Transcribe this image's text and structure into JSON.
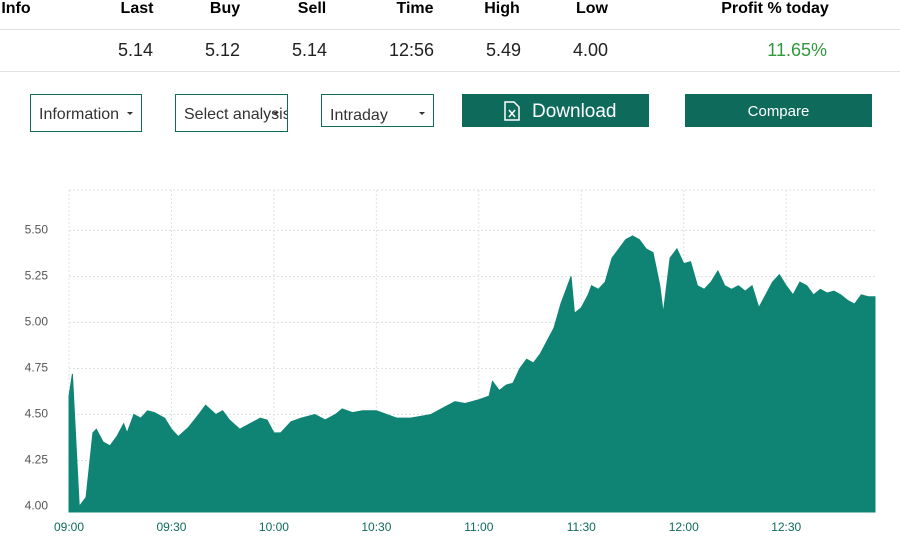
{
  "table": {
    "headers": [
      "Info",
      "Last",
      "Buy",
      "Sell",
      "Time",
      "High",
      "Low",
      "Profit % today"
    ],
    "row": [
      "5.14",
      "5.12",
      "5.14",
      "12:56",
      "5.49",
      "4.00",
      "11.65%"
    ]
  },
  "controls": {
    "selects": [
      "Information",
      "Select analysis",
      "Intraday"
    ],
    "buttons": [
      "Download",
      "Compare"
    ]
  },
  "chart_data": {
    "type": "area",
    "color": "#0f8474",
    "x": [
      "09:00",
      "09:01",
      "09:03",
      "09:05",
      "09:07",
      "09:08",
      "09:10",
      "09:12",
      "09:14",
      "09:16",
      "09:17",
      "09:19",
      "09:21",
      "09:23",
      "09:25",
      "09:28",
      "09:30",
      "09:32",
      "09:35",
      "09:38",
      "09:40",
      "09:43",
      "09:45",
      "09:47",
      "09:50",
      "09:53",
      "09:56",
      "09:58",
      "10:00",
      "10:02",
      "10:05",
      "10:08",
      "10:12",
      "10:15",
      "10:18",
      "10:20",
      "10:23",
      "10:26",
      "10:30",
      "10:33",
      "10:36",
      "10:40",
      "10:43",
      "10:46",
      "10:50",
      "10:53",
      "10:56",
      "11:00",
      "11:03",
      "11:04",
      "11:06",
      "11:08",
      "11:10",
      "11:12",
      "11:14",
      "11:16",
      "11:18",
      "11:20",
      "11:22",
      "11:24",
      "11:26",
      "11:27",
      "11:28",
      "11:30",
      "11:32",
      "11:33",
      "11:35",
      "11:37",
      "11:39",
      "11:41",
      "11:43",
      "11:45",
      "11:47",
      "11:49",
      "11:51",
      "11:53",
      "11:54",
      "11:56",
      "11:58",
      "12:00",
      "12:02",
      "12:04",
      "12:06",
      "12:08",
      "12:10",
      "12:12",
      "12:14",
      "12:16",
      "12:18",
      "12:20",
      "12:22",
      "12:24",
      "12:26",
      "12:28",
      "12:30",
      "12:32",
      "12:34",
      "12:36",
      "12:38",
      "12:40",
      "12:42",
      "12:44",
      "12:46",
      "12:48",
      "12:50",
      "12:52",
      "12:54",
      "12:56"
    ],
    "values": [
      4.6,
      4.72,
      4.0,
      4.05,
      4.4,
      4.42,
      4.35,
      4.33,
      4.38,
      4.45,
      4.4,
      4.5,
      4.48,
      4.52,
      4.51,
      4.48,
      4.42,
      4.38,
      4.43,
      4.5,
      4.55,
      4.5,
      4.52,
      4.47,
      4.42,
      4.45,
      4.48,
      4.47,
      4.4,
      4.4,
      4.46,
      4.48,
      4.5,
      4.47,
      4.5,
      4.53,
      4.51,
      4.52,
      4.52,
      4.5,
      4.48,
      4.48,
      4.49,
      4.5,
      4.54,
      4.57,
      4.56,
      4.58,
      4.6,
      4.68,
      4.63,
      4.66,
      4.67,
      4.75,
      4.8,
      4.78,
      4.83,
      4.9,
      4.97,
      5.1,
      5.2,
      5.25,
      5.05,
      5.08,
      5.15,
      5.2,
      5.18,
      5.22,
      5.35,
      5.4,
      5.45,
      5.47,
      5.45,
      5.4,
      5.38,
      5.2,
      5.05,
      5.35,
      5.4,
      5.32,
      5.33,
      5.2,
      5.18,
      5.22,
      5.28,
      5.2,
      5.18,
      5.2,
      5.17,
      5.2,
      5.08,
      5.15,
      5.22,
      5.26,
      5.2,
      5.15,
      5.22,
      5.2,
      5.15,
      5.18,
      5.16,
      5.17,
      5.15,
      5.12,
      5.1,
      5.15,
      5.14,
      5.14
    ],
    "xlim": [
      "09:00",
      "12:56"
    ],
    "xticks": [
      "09:00",
      "09:30",
      "10:00",
      "10:30",
      "11:00",
      "11:30",
      "12:00",
      "12:30"
    ],
    "ylim": [
      3.97,
      5.72
    ],
    "yticks": [
      {
        "value": 4,
        "label": "4.00"
      },
      {
        "value": 4.25,
        "label": "4.25"
      },
      {
        "value": 4.5,
        "label": "4.50"
      },
      {
        "value": 4.75,
        "label": "4.75"
      },
      {
        "value": 5,
        "label": "5.00"
      },
      {
        "value": 5.25,
        "label": "5.25"
      },
      {
        "value": 5.5,
        "label": "5.50"
      }
    ],
    "grid": true
  }
}
